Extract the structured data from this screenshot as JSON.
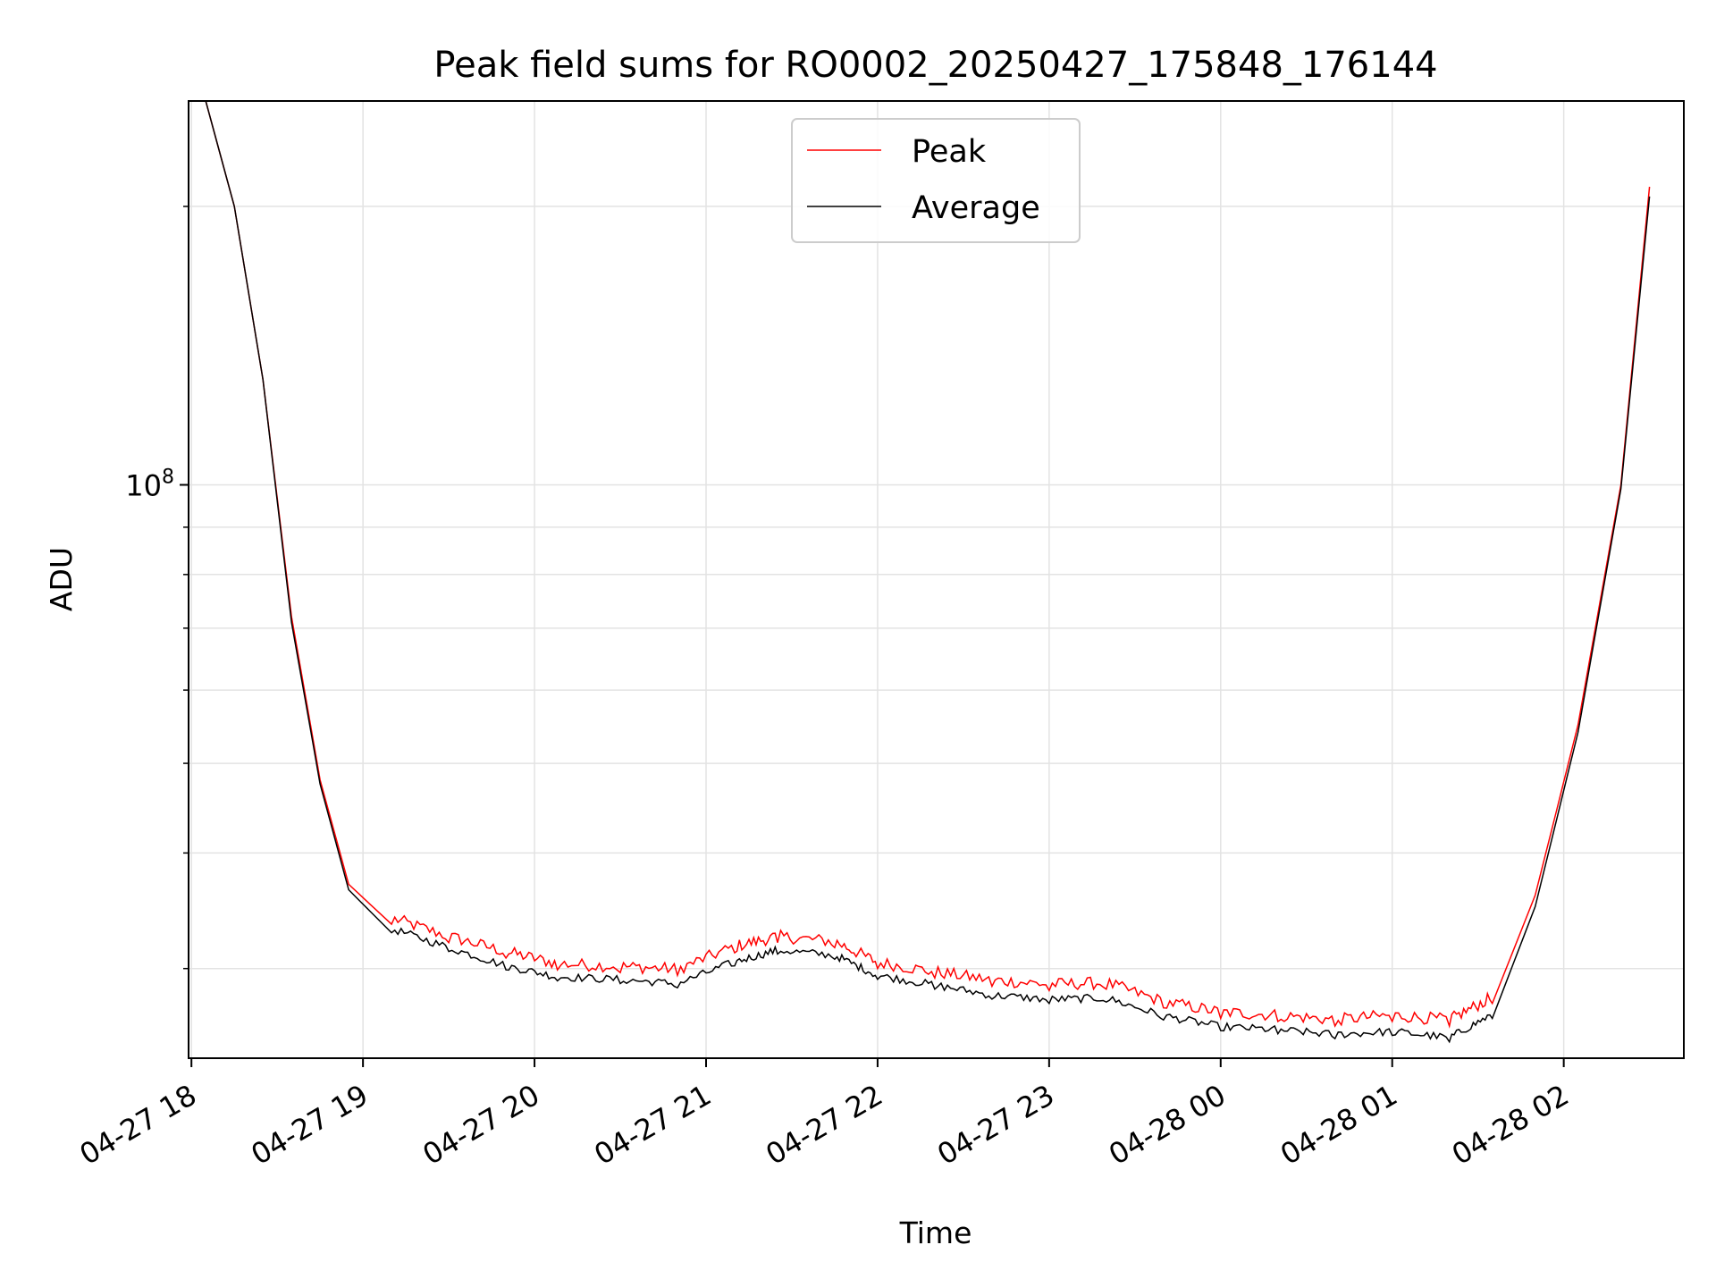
{
  "chart_data": {
    "type": "line",
    "title": "Peak field sums for RO0002_20250427_175848_176144",
    "xlabel": "Time",
    "ylabel": "ADU",
    "x_axis": {
      "type": "time",
      "range": [
        "2025-04-27 17:59",
        "2025-04-28 02:42"
      ],
      "ticks": [
        "04-27 18",
        "04-27 19",
        "04-27 20",
        "04-27 21",
        "04-27 22",
        "04-27 23",
        "04-28 00",
        "04-28 01",
        "04-28 02"
      ]
    },
    "y_axis": {
      "scale": "log",
      "range": [
        24000000,
        260000000
      ],
      "major_tick_labels": [
        {
          "value": 100000000,
          "label": "10^8"
        }
      ],
      "minor_ticks": [
        30000000,
        40000000,
        50000000,
        60000000,
        70000000,
        80000000,
        90000000,
        200000000
      ]
    },
    "grid": true,
    "legend": {
      "position": "top-center",
      "entries": [
        "Peak",
        "Average"
      ]
    },
    "series": [
      {
        "name": "Peak",
        "color": "#ff0000",
        "x": [
          "2025-04-27 18:05",
          "2025-04-27 18:15",
          "2025-04-27 18:25",
          "2025-04-27 18:35",
          "2025-04-27 18:45",
          "2025-04-27 18:55",
          "2025-04-27 19:10",
          "2025-04-27 19:30",
          "2025-04-27 19:50",
          "2025-04-27 20:08",
          "2025-04-27 20:30",
          "2025-04-27 20:50",
          "2025-04-27 21:10",
          "2025-04-27 21:25",
          "2025-04-27 21:45",
          "2025-04-27 22:00",
          "2025-04-27 22:20",
          "2025-04-27 22:40",
          "2025-04-27 23:00",
          "2025-04-27 23:20",
          "2025-04-27 23:40",
          "2025-04-28 00:00",
          "2025-04-28 00:20",
          "2025-04-28 00:40",
          "2025-04-28 01:00",
          "2025-04-28 01:20",
          "2025-04-28 01:35",
          "2025-04-28 01:50",
          "2025-04-28 02:05",
          "2025-04-28 02:20",
          "2025-04-28 02:30"
        ],
        "y": [
          260000000,
          200000000,
          130000000,
          72000000,
          48000000,
          37000000,
          33500000,
          32000000,
          30800000,
          29900000,
          29700000,
          29500000,
          31200000,
          32000000,
          31600000,
          30000000,
          29300000,
          28700000,
          28400000,
          28500000,
          27200000,
          26500000,
          26300000,
          26000000,
          26300000,
          26000000,
          27500000,
          36000000,
          55000000,
          100000000,
          210000000
        ]
      },
      {
        "name": "Average",
        "color": "#000000",
        "x": [
          "2025-04-27 18:05",
          "2025-04-27 18:15",
          "2025-04-27 18:25",
          "2025-04-27 18:35",
          "2025-04-27 18:45",
          "2025-04-27 18:55",
          "2025-04-27 19:10",
          "2025-04-27 19:30",
          "2025-04-27 19:50",
          "2025-04-27 20:08",
          "2025-04-27 20:30",
          "2025-04-27 20:50",
          "2025-04-27 21:10",
          "2025-04-27 21:25",
          "2025-04-27 21:45",
          "2025-04-27 22:00",
          "2025-04-27 22:20",
          "2025-04-27 22:40",
          "2025-04-27 23:00",
          "2025-04-27 23:20",
          "2025-04-27 23:40",
          "2025-04-28 00:00",
          "2025-04-28 00:20",
          "2025-04-28 00:40",
          "2025-04-28 01:00",
          "2025-04-28 01:20",
          "2025-04-28 01:35",
          "2025-04-28 01:50",
          "2025-04-28 02:05",
          "2025-04-28 02:20",
          "2025-04-28 02:30"
        ],
        "y": [
          260000000,
          200000000,
          130000000,
          71000000,
          47500000,
          36500000,
          32800000,
          31300000,
          29900000,
          29100000,
          28900000,
          28600000,
          30200000,
          31100000,
          30700000,
          29200000,
          28500000,
          27800000,
          27500000,
          27600000,
          26400000,
          25700000,
          25500000,
          25200000,
          25400000,
          25000000,
          26500000,
          35000000,
          54000000,
          99000000,
          205000000
        ]
      }
    ]
  }
}
